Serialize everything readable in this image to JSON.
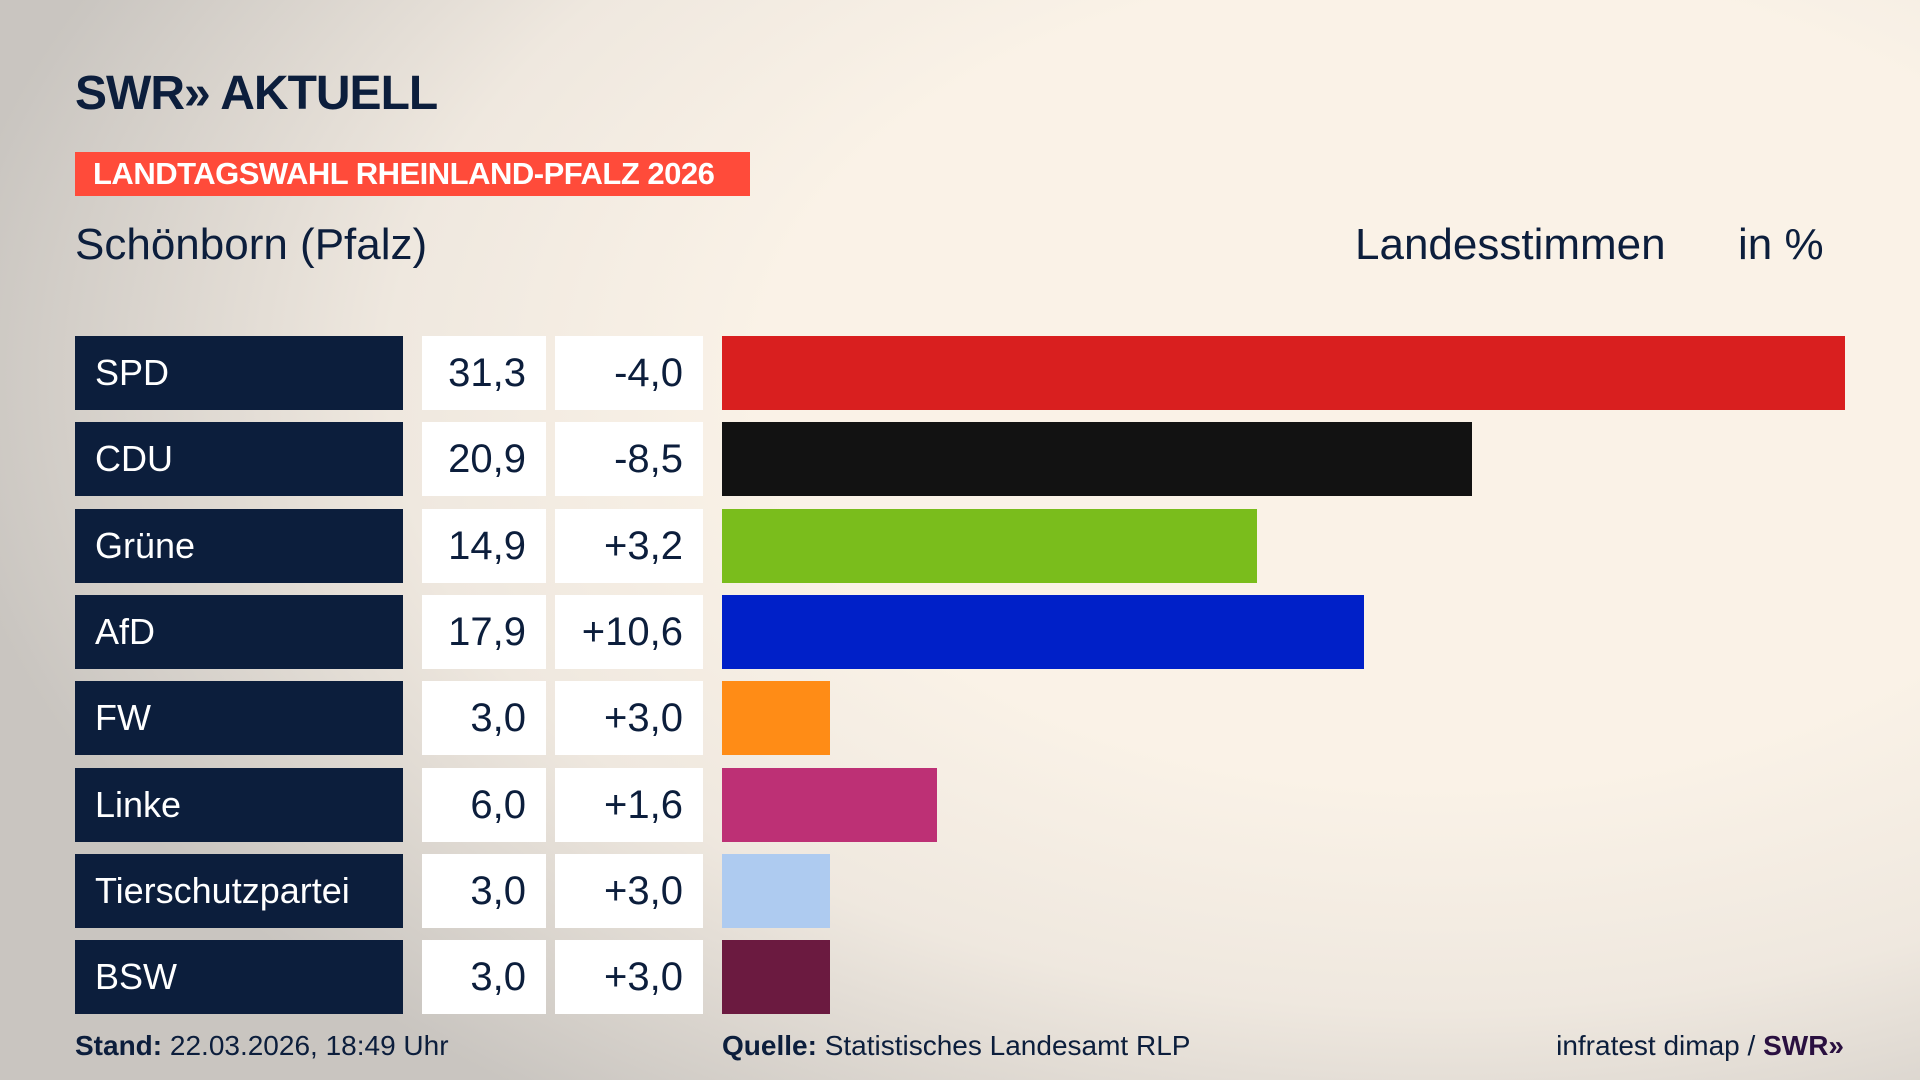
{
  "header": {
    "logo": "SWR» AKTUELL",
    "banner": "LANDTAGSWAHL RHEINLAND-PFALZ 2026",
    "place": "Schönborn (Pfalz)",
    "column_label": "Landesstimmen",
    "unit": "in %"
  },
  "chart_data": {
    "type": "bar",
    "orientation": "horizontal",
    "categories": [
      "SPD",
      "CDU",
      "Grüne",
      "AfD",
      "FW",
      "Linke",
      "Tierschutzpartei",
      "BSW"
    ],
    "values": [
      31.3,
      20.9,
      14.9,
      17.9,
      3.0,
      6.0,
      3.0,
      3.0
    ],
    "value_labels": [
      "31,3",
      "20,9",
      "14,9",
      "17,9",
      "3,0",
      "6,0",
      "3,0",
      "3,0"
    ],
    "diff_labels": [
      "-4,0",
      "-8,5",
      "+3,2",
      "+10,6",
      "+3,0",
      "+1,6",
      "+3,0",
      "+3,0"
    ],
    "colors": [
      "#d91f1f",
      "#121212",
      "#7abd1c",
      "#0020c8",
      "#ff8c16",
      "#bd3075",
      "#aecbf0",
      "#6b1a40"
    ]
  },
  "footer": {
    "stand_label": "Stand:",
    "stand_value": " 22.03.2026, 18:49 Uhr",
    "source_label": "Quelle:",
    "source_value": " Statistisches Landesamt RLP",
    "credit": "infratest dimap / ",
    "credit_brand": "SWR»"
  }
}
